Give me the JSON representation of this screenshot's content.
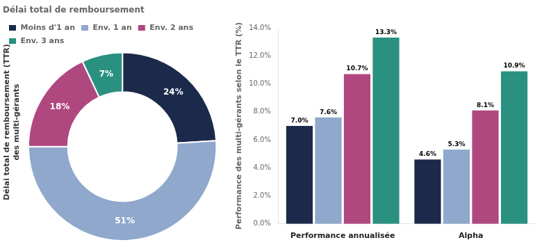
{
  "chart_data": [
    {
      "type": "pie",
      "title": "Délai total de remboursement",
      "ylabel": "Délai total de remboursement (TTR)\ndes multi-gérants",
      "categories": [
        "Moins d'1 an",
        "Env. 1 an",
        "Env. 2 ans",
        "Env. 3 ans"
      ],
      "values": [
        24,
        51,
        18,
        7
      ],
      "value_labels": [
        "24%",
        "51%",
        "18%",
        "7%"
      ],
      "colors": [
        "#1b2a4a",
        "#8fa8cc",
        "#b04880",
        "#2a9080"
      ],
      "data_labels": true,
      "legend": "top"
    },
    {
      "type": "bar",
      "ylabel": "Performance des multi-gérants selon le TTR (%)",
      "categories": [
        "Performance annualisée",
        "Alpha"
      ],
      "series": [
        {
          "name": "Moins d'1 an",
          "color": "#1b2a4a",
          "values": [
            7.0,
            4.6
          ],
          "value_labels": [
            "7.0%",
            "4.6%"
          ]
        },
        {
          "name": "Env. 1 an",
          "color": "#8fa8cc",
          "values": [
            7.6,
            5.3
          ],
          "value_labels": [
            "7.6%",
            "5.3%"
          ]
        },
        {
          "name": "Env. 2 ans",
          "color": "#b04880",
          "values": [
            10.7,
            8.1
          ],
          "value_labels": [
            "10.7%",
            "8.1%"
          ]
        },
        {
          "name": "Env. 3 ans",
          "color": "#2a9080",
          "values": [
            13.3,
            10.9
          ],
          "value_labels": [
            "13.3%",
            "10.9%"
          ]
        }
      ],
      "ylim": [
        0,
        14.0
      ],
      "yticks": [
        {
          "value": 0.0,
          "label": "0.0%"
        },
        {
          "value": 2.0,
          "label": "2.0%"
        },
        {
          "value": 4.0,
          "label": "4.0%"
        },
        {
          "value": 6.0,
          "label": "6.0%"
        },
        {
          "value": 8.0,
          "label": "8.0%"
        },
        {
          "value": 10.0,
          "label": "10.0%"
        },
        {
          "value": 12.0,
          "label": "12.0%"
        },
        {
          "value": 14.0,
          "label": "14.0%"
        }
      ],
      "grid": false,
      "data_labels": true
    }
  ]
}
